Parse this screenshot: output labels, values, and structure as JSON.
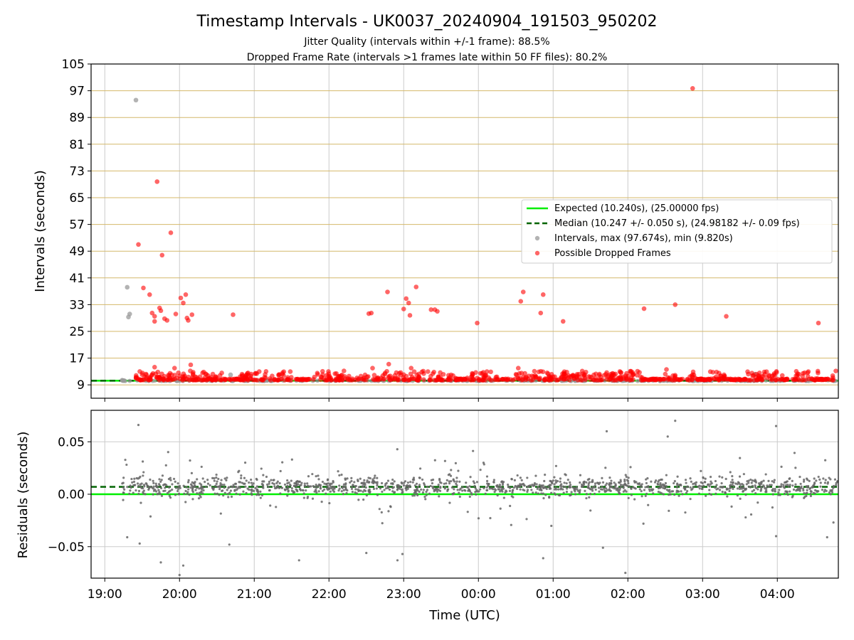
{
  "chart_data": [
    {
      "type": "scatter",
      "title": "Timestamp Intervals - UK0037_20240904_191503_950202",
      "subtitle_lines": [
        "Jitter Quality (intervals within +/-1 frame): 88.5%",
        "Dropped Frame Rate (intervals >1 frames late within 50 FF files): 80.2%"
      ],
      "xlabel": "",
      "ylabel": "Intervals (seconds)",
      "x_axis": "time (UTC)",
      "xlim": [
        "2024-09-04T18:49:00Z",
        "2024-09-05T04:49:00Z"
      ],
      "ylim": [
        5,
        105
      ],
      "yticks": [
        9,
        17,
        25,
        33,
        41,
        49,
        57,
        65,
        73,
        81,
        89,
        97,
        105
      ],
      "grid": true,
      "grid_color": "#d4b86a",
      "legend_position": "center-right",
      "legend": [
        "Expected (10.240s), (25.00000 fps)",
        "Median (10.247 +/- 0.050 s), (24.98182 +/- 0.09 fps)",
        "Intervals, max (97.674s), min (9.820s)",
        "Possible Dropped Frames"
      ],
      "series": [
        {
          "name": "Expected (10.240s), (25.00000 fps)",
          "kind": "hline",
          "y": 10.24,
          "color": "#00ee00",
          "style": "solid"
        },
        {
          "name": "Median (10.247 +/- 0.050 s), (24.98182 +/- 0.09 fps)",
          "kind": "hline",
          "y": 10.247,
          "color": "#006400",
          "style": "dashed"
        },
        {
          "name": "Intervals, max (97.674s), min (9.820s)",
          "kind": "scatter",
          "color": "#999999",
          "points": [
            [
              "2024-09-04T19:18:00Z",
              38.2
            ],
            [
              "2024-09-04T19:19:00Z",
              29.3
            ],
            [
              "2024-09-04T19:20:00Z",
              30.2
            ],
            [
              "2024-09-04T19:25:00Z",
              94.2
            ],
            [
              "2024-09-04T20:41:00Z",
              12.0
            ],
            [
              "2024-09-04T19:14:00Z",
              10.4
            ],
            [
              "2024-09-05T03:42:00Z",
              12.2
            ]
          ]
        },
        {
          "name": "Possible Dropped Frames",
          "kind": "scatter",
          "color": "#ff0000",
          "points": [
            [
              "2024-09-04T19:27:00Z",
              51.0
            ],
            [
              "2024-09-04T19:31:00Z",
              38.0
            ],
            [
              "2024-09-04T19:36:00Z",
              36.0
            ],
            [
              "2024-09-04T19:38:00Z",
              30.5
            ],
            [
              "2024-09-04T19:40:00Z",
              29.5
            ],
            [
              "2024-09-04T19:40:00Z",
              28.0
            ],
            [
              "2024-09-04T19:40:00Z",
              14.3
            ],
            [
              "2024-09-04T19:42:00Z",
              69.8
            ],
            [
              "2024-09-04T19:44:00Z",
              32.0
            ],
            [
              "2024-09-04T19:45:00Z",
              31.2
            ],
            [
              "2024-09-04T19:46:00Z",
              47.8
            ],
            [
              "2024-09-04T19:48:00Z",
              28.8
            ],
            [
              "2024-09-04T19:50:00Z",
              28.3
            ],
            [
              "2024-09-04T19:53:00Z",
              54.5
            ],
            [
              "2024-09-04T19:56:00Z",
              14.0
            ],
            [
              "2024-09-04T19:57:00Z",
              30.2
            ],
            [
              "2024-09-04T20:01:00Z",
              35.0
            ],
            [
              "2024-09-04T20:03:00Z",
              33.5
            ],
            [
              "2024-09-04T20:05:00Z",
              36.0
            ],
            [
              "2024-09-04T20:06:00Z",
              29.0
            ],
            [
              "2024-09-04T20:07:00Z",
              28.3
            ],
            [
              "2024-09-04T20:09:00Z",
              15.0
            ],
            [
              "2024-09-04T20:10:00Z",
              30.0
            ],
            [
              "2024-09-04T20:43:00Z",
              30.0
            ],
            [
              "2024-09-04T22:32:00Z",
              30.3
            ],
            [
              "2024-09-04T22:34:00Z",
              30.5
            ],
            [
              "2024-09-04T22:35:00Z",
              14.0
            ],
            [
              "2024-09-04T22:47:00Z",
              36.8
            ],
            [
              "2024-09-04T22:48:00Z",
              15.2
            ],
            [
              "2024-09-04T23:00:00Z",
              31.7
            ],
            [
              "2024-09-04T23:02:00Z",
              34.8
            ],
            [
              "2024-09-04T23:04:00Z",
              33.5
            ],
            [
              "2024-09-04T23:05:00Z",
              29.8
            ],
            [
              "2024-09-04T23:06:00Z",
              14.0
            ],
            [
              "2024-09-04T23:10:00Z",
              38.3
            ],
            [
              "2024-09-04T23:22:00Z",
              31.5
            ],
            [
              "2024-09-04T23:25:00Z",
              31.5
            ],
            [
              "2024-09-04T23:27:00Z",
              31.0
            ],
            [
              "2024-09-04T23:59:00Z",
              27.5
            ],
            [
              "2024-09-05T00:32:00Z",
              14.0
            ],
            [
              "2024-09-05T00:34:00Z",
              34.0
            ],
            [
              "2024-09-05T00:36:00Z",
              36.8
            ],
            [
              "2024-09-05T00:50:00Z",
              30.5
            ],
            [
              "2024-09-05T00:52:00Z",
              36.0
            ],
            [
              "2024-09-05T01:08:00Z",
              28.0
            ],
            [
              "2024-09-05T02:13:00Z",
              31.8
            ],
            [
              "2024-09-05T02:31:00Z",
              13.6
            ],
            [
              "2024-09-05T02:38:00Z",
              33.0
            ],
            [
              "2024-09-05T02:52:00Z",
              97.7
            ],
            [
              "2024-09-05T03:19:00Z",
              29.5
            ],
            [
              "2024-09-05T04:04:00Z",
              11.8
            ],
            [
              "2024-09-05T04:33:00Z",
              27.5
            ]
          ],
          "dense_band": {
            "x_range": [
              "2024-09-04T19:25:00Z",
              "2024-09-05T04:47:00Z"
            ],
            "y_range": [
              10.3,
              13.0
            ]
          }
        }
      ]
    },
    {
      "type": "scatter",
      "xlabel": "Time (UTC)",
      "ylabel": "Residuals (seconds)",
      "xlim": [
        "2024-09-04T18:49:00Z",
        "2024-09-05T04:49:00Z"
      ],
      "ylim": [
        -0.08,
        0.08
      ],
      "yticks": [
        -0.05,
        0.0,
        0.05
      ],
      "ytick_labels": [
        "−0.05",
        "0.00",
        "0.05"
      ],
      "xticks": [
        "19:00",
        "20:00",
        "21:00",
        "22:00",
        "23:00",
        "00:00",
        "01:00",
        "02:00",
        "03:00",
        "04:00"
      ],
      "grid": true,
      "series": [
        {
          "kind": "hline",
          "y": 0.0,
          "color": "#00ee00",
          "style": "solid"
        },
        {
          "kind": "hline",
          "y": 0.007,
          "color": "#006400",
          "style": "dashed"
        },
        {
          "kind": "scatter",
          "color": "#666666",
          "points": [
            [
              "2024-09-04T19:18:00Z",
              -0.041
            ],
            [
              "2024-09-04T19:27:00Z",
              0.066
            ],
            [
              "2024-09-04T19:28:00Z",
              -0.047
            ],
            [
              "2024-09-04T19:45:00Z",
              -0.065
            ],
            [
              "2024-09-04T20:00:00Z",
              -0.077
            ],
            [
              "2024-09-04T20:03:00Z",
              -0.068
            ],
            [
              "2024-09-04T20:40:00Z",
              -0.048
            ],
            [
              "2024-09-04T21:36:00Z",
              -0.063
            ],
            [
              "2024-09-04T22:30:00Z",
              -0.056
            ],
            [
              "2024-09-04T22:55:00Z",
              -0.063
            ],
            [
              "2024-09-04T22:59:00Z",
              -0.057
            ],
            [
              "2024-09-05T00:52:00Z",
              -0.061
            ],
            [
              "2024-09-05T01:43:00Z",
              0.06
            ],
            [
              "2024-09-05T01:40:00Z",
              -0.051
            ],
            [
              "2024-09-05T01:58:00Z",
              -0.075
            ],
            [
              "2024-09-05T02:32:00Z",
              0.055
            ],
            [
              "2024-09-05T02:38:00Z",
              0.07
            ],
            [
              "2024-09-05T03:59:00Z",
              0.065
            ],
            [
              "2024-09-05T03:59:00Z",
              -0.04
            ],
            [
              "2024-09-05T04:40:00Z",
              -0.041
            ]
          ],
          "dense_band": {
            "x_range": [
              "2024-09-04T19:14:00Z",
              "2024-09-05T04:49:00Z"
            ],
            "y_range": [
              -0.01,
              0.02
            ]
          }
        }
      ]
    }
  ]
}
